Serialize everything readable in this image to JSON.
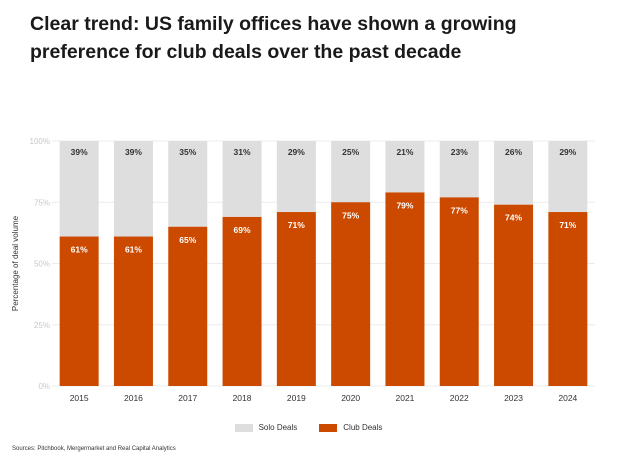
{
  "title": "Clear trend: US family offices have shown a growing preference for club deals over the past decade",
  "source": "Sources: Pitchbook, Mergermarket and Real Capital Analytics",
  "colors": {
    "club": "#cc4a00",
    "solo": "#dedede",
    "grid": "#ececec",
    "tick": "#c8c8c8"
  },
  "chart_data": {
    "type": "bar",
    "stacked": true,
    "categories": [
      "2015",
      "2016",
      "2017",
      "2018",
      "2019",
      "2020",
      "2021",
      "2022",
      "2023",
      "2024"
    ],
    "series": [
      {
        "name": "Club Deals",
        "values": [
          61,
          61,
          65,
          69,
          71,
          75,
          79,
          77,
          74,
          71
        ]
      },
      {
        "name": "Solo Deals",
        "values": [
          39,
          39,
          35,
          31,
          29,
          25,
          21,
          23,
          26,
          29
        ]
      }
    ],
    "value_labels": {
      "club": [
        "61%",
        "61%",
        "65%",
        "69%",
        "71%",
        "75%",
        "79%",
        "77%",
        "74%",
        "71%"
      ],
      "solo": [
        "39%",
        "39%",
        "35%",
        "31%",
        "29%",
        "25%",
        "21%",
        "23%",
        "26%",
        "29%"
      ]
    },
    "ylabel": "Percentage of deal volume",
    "ylim": [
      0,
      100
    ],
    "yticks": [
      "0%",
      "25%",
      "50%",
      "75%",
      "100%"
    ],
    "grid": true,
    "legend_position": "bottom-center"
  }
}
